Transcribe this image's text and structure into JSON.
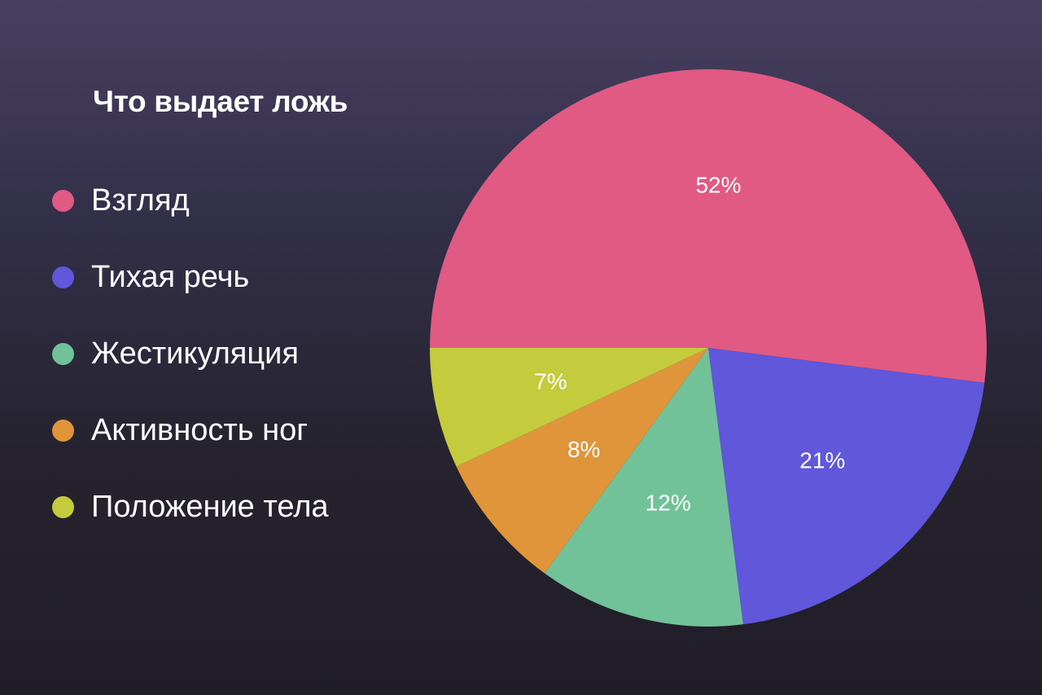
{
  "chart_data": {
    "type": "pie",
    "title": "Что выдает ложь",
    "legend_position": "left",
    "slices": [
      {
        "label": "Взгляд",
        "value": 52,
        "display": "52%",
        "color": "#e05a84"
      },
      {
        "label": "Тихая речь",
        "value": 21,
        "display": "21%",
        "color": "#6057db"
      },
      {
        "label": "Жестикуляция",
        "value": 12,
        "display": "12%",
        "color": "#71c298"
      },
      {
        "label": "Активность ног",
        "value": 8,
        "display": "8%",
        "color": "#e0953b"
      },
      {
        "label": "Положение тела",
        "value": 7,
        "display": "7%",
        "color": "#c4cb3c"
      }
    ]
  }
}
